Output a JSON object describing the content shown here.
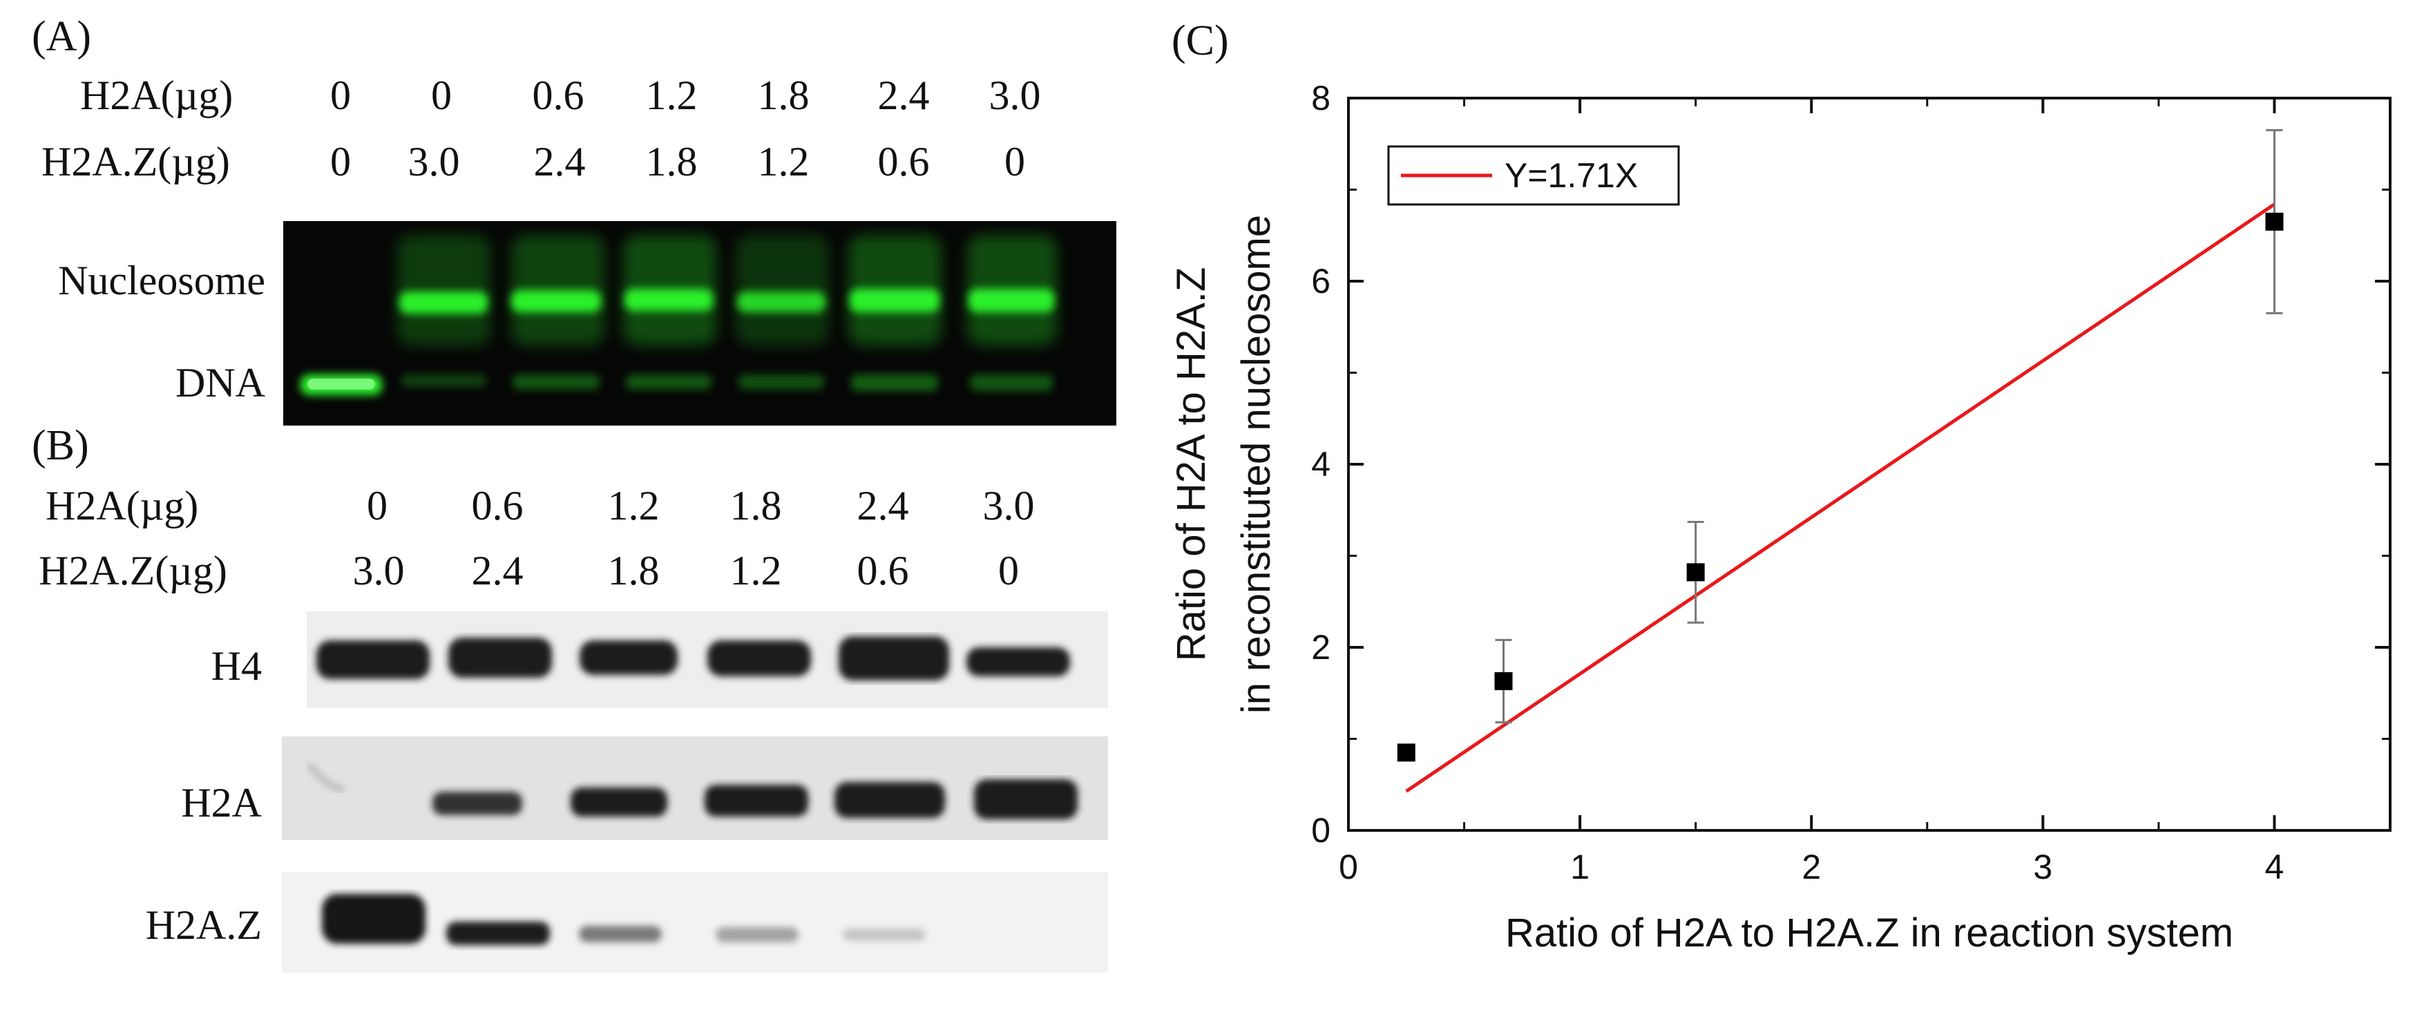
{
  "panel_a": {
    "letter": "(A)",
    "row1_label": "H2A(µg)",
    "row2_label": "H2A.Z(µg)",
    "h2a_values": [
      "0",
      "0",
      "0.6",
      "1.2",
      "1.8",
      "2.4",
      "3.0"
    ],
    "h2az_values": [
      "0",
      "3.0",
      "2.4",
      "1.8",
      "1.2",
      "0.6",
      "0"
    ],
    "band_labels": {
      "nucleosome": "Nucleosome",
      "dna": "DNA"
    }
  },
  "panel_b": {
    "letter": "(B)",
    "row1_label": "H2A(µg)",
    "row2_label": "H2A.Z(µg)",
    "h2a_values": [
      "0",
      "0.6",
      "1.2",
      "1.8",
      "2.4",
      "3.0"
    ],
    "h2az_values": [
      "3.0",
      "2.4",
      "1.8",
      "1.2",
      "0.6",
      "0"
    ],
    "blot_labels": {
      "h4": "H4",
      "h2a": "H2A",
      "h2az": "H2A.Z"
    }
  },
  "panel_c": {
    "letter": "(C)"
  },
  "colors": {
    "gel_background": "#060606",
    "gel_band": "#2cf02c",
    "blot_background": "#eeeeee",
    "blot_band": "#1c1c1c",
    "fit_line": "#e8191b",
    "markers": "#000000"
  },
  "chart_data": {
    "type": "scatter",
    "xlabel": "Ratio of H2A to H2A.Z in reaction system",
    "ylabel": [
      "Ratio of H2A to H2A.Z",
      "in reconstituted nucleosome"
    ],
    "xlim": [
      0,
      4.5
    ],
    "ylim": [
      0,
      8
    ],
    "xticks": [
      0,
      1,
      2,
      3,
      4
    ],
    "yticks": [
      0,
      2,
      4,
      6,
      8
    ],
    "grid": false,
    "legend_position": "top-left",
    "series": [
      {
        "kind": "points-with-error",
        "x": [
          0.25,
          0.67,
          1.5,
          4.0
        ],
        "y": [
          0.85,
          1.63,
          2.82,
          6.65
        ],
        "err": [
          0,
          0.45,
          0.55,
          1.0
        ]
      },
      {
        "kind": "line",
        "name": "Y=1.71X",
        "slope": 1.71,
        "x_range": [
          0.25,
          4.0
        ]
      }
    ]
  }
}
